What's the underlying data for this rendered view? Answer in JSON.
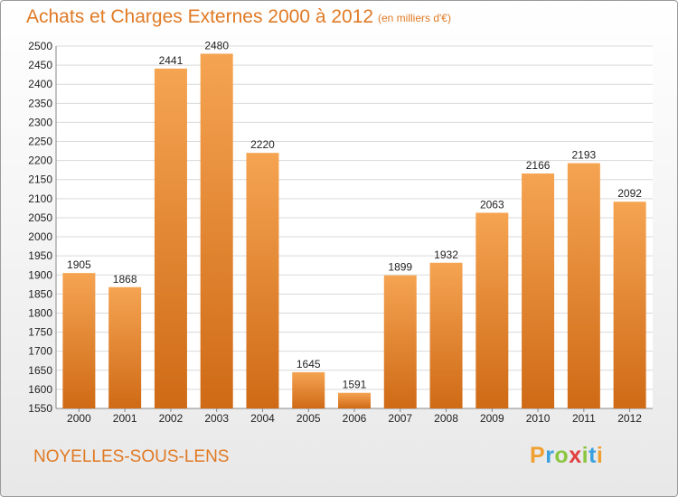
{
  "header": {
    "title": "Achats et Charges Externes 2000 à 2012",
    "subtitle": "(en milliers d'€)"
  },
  "footer": {
    "town": "NOYELLES-SOUS-LENS",
    "logo_letters": [
      "P",
      "r",
      "o",
      "x",
      "i",
      "t",
      "i"
    ],
    "logo_colors": [
      "#f0a030",
      "#3aa0e0",
      "#8cc63f",
      "#e04040",
      "#8cc63f",
      "#3aa0e0",
      "#f0a030"
    ]
  },
  "colors": {
    "bar_top": "#f5a452",
    "bar_bottom": "#cf6a16",
    "text": "#222222",
    "accent": "#e07a24"
  },
  "chart_data": {
    "type": "bar",
    "title": "Achats et Charges Externes 2000 à 2012",
    "subtitle": "(en milliers d'€)",
    "categories": [
      "2000",
      "2001",
      "2002",
      "2003",
      "2004",
      "2005",
      "2006",
      "2007",
      "2008",
      "2009",
      "2010",
      "2011",
      "2012"
    ],
    "values": [
      1905,
      1868,
      2441,
      2480,
      2220,
      1645,
      1591,
      1899,
      1932,
      2063,
      2166,
      2193,
      2092
    ],
    "ylim": [
      1550,
      2500
    ],
    "yticks": [
      1550,
      1600,
      1650,
      1700,
      1750,
      1800,
      1850,
      1900,
      1950,
      2000,
      2050,
      2100,
      2150,
      2200,
      2250,
      2300,
      2350,
      2400,
      2450,
      2500
    ],
    "grid": true,
    "xlabel": "",
    "ylabel": ""
  }
}
